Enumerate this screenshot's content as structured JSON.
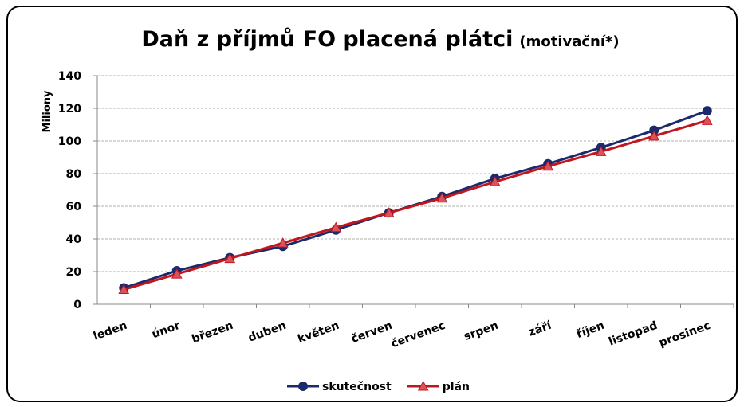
{
  "chart_data": {
    "type": "line",
    "title": "Daň z příjmů FO placená plátci",
    "subtitle": "(motivační*)",
    "ylabel": "Miliony",
    "categories": [
      "leden",
      "únor",
      "březen",
      "duben",
      "květen",
      "červen",
      "červenec",
      "srpen",
      "září",
      "říjen",
      "listopad",
      "prosinec"
    ],
    "series": [
      {
        "name": "skutečnost",
        "color": "#1b2a6b",
        "marker": "circle",
        "values": [
          10,
          20.5,
          28.5,
          35.5,
          45.5,
          56,
          66,
          77,
          86,
          96,
          106.5,
          118.5
        ]
      },
      {
        "name": "plán",
        "color": "#c0161e",
        "marker": "triangle",
        "values": [
          9,
          18.5,
          28,
          37.5,
          47,
          56,
          65,
          75,
          84.5,
          93.5,
          103,
          112.5
        ]
      }
    ],
    "ylim": [
      0,
      140
    ],
    "yticks": [
      0,
      20,
      40,
      60,
      80,
      100,
      120,
      140
    ],
    "grid": true,
    "legend": "bottom"
  }
}
